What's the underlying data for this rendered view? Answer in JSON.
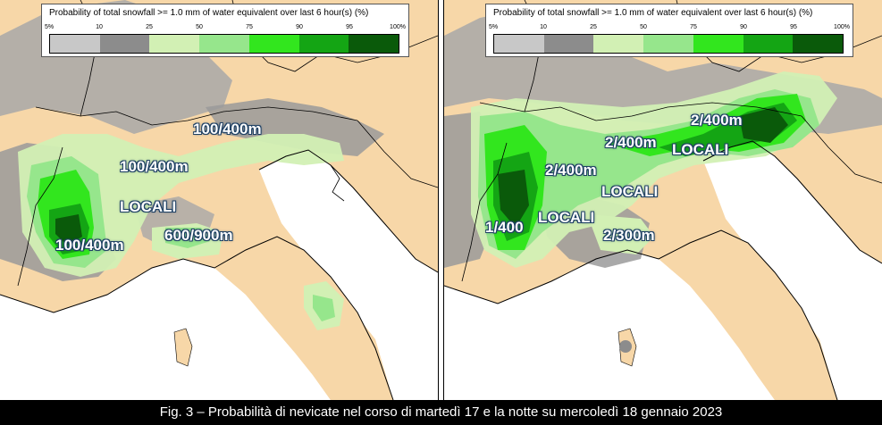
{
  "legend": {
    "title": "Probability of total snowfall >= 1.0 mm of water equivalent over last 6 hour(s) (%)",
    "ticks": [
      "5%",
      "10",
      "25",
      "50",
      "75",
      "90",
      "95",
      "100%"
    ],
    "colors": [
      "#c8c8c8",
      "#8c8c8c",
      "#d2f0b4",
      "#96e68c",
      "#32e61e",
      "#14a514",
      "#0a5a0a"
    ]
  },
  "colors": {
    "land": "#f7d7a8",
    "sea": "#ffffff",
    "border": "#000000",
    "caption_bg": "#000000",
    "caption_text": "#ffffff"
  },
  "left_map": {
    "labels": [
      "100/400m",
      "100/400m",
      "LOCALI",
      "600/900m",
      "100/400m"
    ]
  },
  "right_map": {
    "labels": [
      "2/400m",
      "2/400m",
      "LOCALI",
      "2/400m",
      "LOCALI",
      "1/400",
      "LOCALI",
      "2/300m"
    ]
  },
  "caption": "Fig. 3 – Probabilità di nevicate nel corso di martedì 17 e la notte su mercoledì 18 gennaio 2023"
}
